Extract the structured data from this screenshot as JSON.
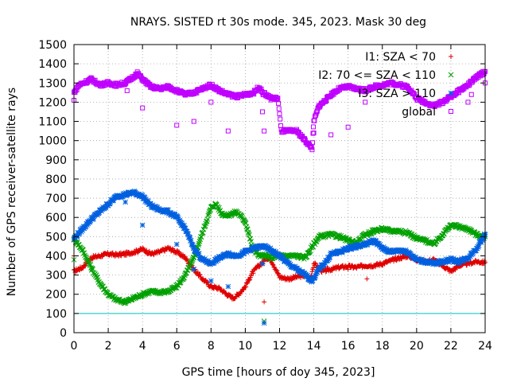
{
  "chart_data": {
    "type": "scatter",
    "title": "NRAYS. SISTED rt 30s mode. 345, 2023. Mask 30 deg",
    "xlabel": "GPS time [hours of doy 345, 2023]",
    "ylabel": "Number of GPS receiver-satellite rays",
    "xlim": [
      0,
      24
    ],
    "ylim": [
      0,
      1500
    ],
    "xticks": [
      0,
      2,
      4,
      6,
      8,
      10,
      12,
      14,
      16,
      18,
      20,
      22,
      24
    ],
    "yticks": [
      0,
      100,
      200,
      300,
      400,
      500,
      600,
      700,
      800,
      900,
      1000,
      1100,
      1200,
      1300,
      1400,
      1500
    ],
    "grid": true,
    "legend_position": "top-right",
    "threshold_line": {
      "y": 100,
      "color": "#00c0c0"
    },
    "series": [
      {
        "name": "I1: SZA < 70",
        "marker": "+",
        "color": "#e00000",
        "points": [
          [
            0,
            320
          ],
          [
            0.5,
            340
          ],
          [
            1,
            390
          ],
          [
            1.5,
            400
          ],
          [
            2,
            410
          ],
          [
            2.5,
            405
          ],
          [
            3,
            410
          ],
          [
            3.5,
            420
          ],
          [
            4,
            435
          ],
          [
            4.5,
            410
          ],
          [
            5,
            420
          ],
          [
            5.5,
            440
          ],
          [
            6,
            420
          ],
          [
            6.5,
            390
          ],
          [
            7,
            330
          ],
          [
            7.5,
            280
          ],
          [
            8,
            240
          ],
          [
            8.5,
            230
          ],
          [
            9,
            195
          ],
          [
            9.3,
            180
          ],
          [
            9.6,
            200
          ],
          [
            10,
            240
          ],
          [
            10.4,
            310
          ],
          [
            10.8,
            350
          ],
          [
            11,
            360
          ],
          [
            11.2,
            390
          ],
          [
            11.5,
            380
          ],
          [
            12,
            290
          ],
          [
            12.5,
            280
          ],
          [
            13,
            290
          ],
          [
            13.5,
            300
          ],
          [
            13.8,
            280
          ],
          [
            14,
            360
          ],
          [
            14.5,
            320
          ],
          [
            15,
            330
          ],
          [
            15.5,
            340
          ],
          [
            16,
            345
          ],
          [
            16.5,
            340
          ],
          [
            17,
            350
          ],
          [
            17.5,
            350
          ],
          [
            18,
            360
          ],
          [
            18.5,
            375
          ],
          [
            19,
            390
          ],
          [
            19.5,
            400
          ],
          [
            20,
            380
          ],
          [
            20.5,
            370
          ],
          [
            21,
            380
          ],
          [
            21.5,
            350
          ],
          [
            22,
            320
          ],
          [
            22.5,
            350
          ],
          [
            23,
            360
          ],
          [
            23.5,
            370
          ],
          [
            24,
            365
          ]
        ],
        "outliers": [
          [
            0,
            400
          ],
          [
            11.1,
            160
          ],
          [
            16,
            330
          ],
          [
            17.1,
            280
          ]
        ]
      },
      {
        "name": "I2: 70 <= SZA < 110",
        "marker": "x",
        "color": "#00a000",
        "points": [
          [
            0,
            490
          ],
          [
            0.5,
            430
          ],
          [
            1,
            340
          ],
          [
            1.5,
            260
          ],
          [
            2,
            200
          ],
          [
            2.5,
            170
          ],
          [
            3,
            160
          ],
          [
            3.5,
            180
          ],
          [
            4,
            200
          ],
          [
            4.5,
            215
          ],
          [
            5,
            210
          ],
          [
            5.5,
            215
          ],
          [
            6,
            240
          ],
          [
            6.5,
            300
          ],
          [
            7,
            390
          ],
          [
            7.5,
            520
          ],
          [
            8,
            650
          ],
          [
            8.3,
            670
          ],
          [
            8.6,
            620
          ],
          [
            9,
            610
          ],
          [
            9.5,
            630
          ],
          [
            10,
            580
          ],
          [
            10.4,
            450
          ],
          [
            10.8,
            400
          ],
          [
            11.2,
            400
          ],
          [
            11.5,
            390
          ],
          [
            12,
            400
          ],
          [
            12.5,
            400
          ],
          [
            13,
            400
          ],
          [
            13.5,
            390
          ],
          [
            14,
            460
          ],
          [
            14.3,
            500
          ],
          [
            15,
            510
          ],
          [
            15.5,
            500
          ],
          [
            16,
            480
          ],
          [
            16.5,
            470
          ],
          [
            17,
            510
          ],
          [
            17.5,
            530
          ],
          [
            18,
            540
          ],
          [
            18.5,
            530
          ],
          [
            19,
            530
          ],
          [
            19.5,
            520
          ],
          [
            20,
            490
          ],
          [
            20.5,
            480
          ],
          [
            21,
            460
          ],
          [
            21.5,
            510
          ],
          [
            22,
            560
          ],
          [
            22.5,
            550
          ],
          [
            23,
            540
          ],
          [
            23.5,
            510
          ],
          [
            24,
            500
          ]
        ],
        "outliers": [
          [
            0,
            380
          ],
          [
            11.1,
            60
          ]
        ]
      },
      {
        "name": "I3: SZA > 110",
        "marker": "*",
        "color": "#0060e0",
        "points": [
          [
            0,
            490
          ],
          [
            0.5,
            540
          ],
          [
            1,
            590
          ],
          [
            1.5,
            630
          ],
          [
            2,
            670
          ],
          [
            2.5,
            710
          ],
          [
            3,
            720
          ],
          [
            3.5,
            730
          ],
          [
            4,
            710
          ],
          [
            4.5,
            660
          ],
          [
            5,
            640
          ],
          [
            5.5,
            630
          ],
          [
            6,
            600
          ],
          [
            6.5,
            540
          ],
          [
            7,
            440
          ],
          [
            7.5,
            380
          ],
          [
            8,
            360
          ],
          [
            8.5,
            390
          ],
          [
            9,
            410
          ],
          [
            9.5,
            400
          ],
          [
            10,
            420
          ],
          [
            10.5,
            440
          ],
          [
            11,
            450
          ],
          [
            11.5,
            430
          ],
          [
            12,
            400
          ],
          [
            12.5,
            360
          ],
          [
            13,
            330
          ],
          [
            13.5,
            300
          ],
          [
            13.9,
            270
          ],
          [
            14.3,
            330
          ],
          [
            14.8,
            380
          ],
          [
            15,
            410
          ],
          [
            15.5,
            420
          ],
          [
            16,
            440
          ],
          [
            16.5,
            450
          ],
          [
            17,
            460
          ],
          [
            17.5,
            480
          ],
          [
            18,
            440
          ],
          [
            18.5,
            420
          ],
          [
            19,
            430
          ],
          [
            19.5,
            420
          ],
          [
            20,
            380
          ],
          [
            20.5,
            370
          ],
          [
            21,
            360
          ],
          [
            21.5,
            370
          ],
          [
            22,
            380
          ],
          [
            22.5,
            370
          ],
          [
            23,
            390
          ],
          [
            23.5,
            440
          ],
          [
            24,
            510
          ]
        ],
        "outliers": [
          [
            3,
            680
          ],
          [
            4,
            560
          ],
          [
            6,
            460
          ],
          [
            7,
            330
          ],
          [
            8,
            270
          ],
          [
            9,
            240
          ],
          [
            11,
            360
          ],
          [
            11.1,
            50
          ]
        ]
      },
      {
        "name": "global",
        "marker": "square",
        "color": "#c000ff",
        "points": [
          [
            0,
            1250
          ],
          [
            0.3,
            1290
          ],
          [
            0.8,
            1310
          ],
          [
            1,
            1320
          ],
          [
            1.5,
            1290
          ],
          [
            2,
            1300
          ],
          [
            2.5,
            1290
          ],
          [
            3,
            1300
          ],
          [
            3.3,
            1320
          ],
          [
            3.7,
            1350
          ],
          [
            4,
            1320
          ],
          [
            4.5,
            1280
          ],
          [
            5,
            1270
          ],
          [
            5.5,
            1280
          ],
          [
            6,
            1260
          ],
          [
            6.5,
            1240
          ],
          [
            7,
            1250
          ],
          [
            7.5,
            1270
          ],
          [
            8,
            1290
          ],
          [
            8.5,
            1260
          ],
          [
            9,
            1240
          ],
          [
            9.5,
            1230
          ],
          [
            10,
            1240
          ],
          [
            10.5,
            1250
          ],
          [
            10.8,
            1280
          ],
          [
            11,
            1250
          ],
          [
            11.5,
            1220
          ],
          [
            11.9,
            1220
          ],
          [
            12.1,
            1050
          ],
          [
            12.5,
            1050
          ],
          [
            13,
            1050
          ],
          [
            13.5,
            1000
          ],
          [
            13.9,
            960
          ],
          [
            14,
            1100
          ],
          [
            14.3,
            1180
          ],
          [
            14.8,
            1220
          ],
          [
            15,
            1240
          ],
          [
            15.5,
            1270
          ],
          [
            16,
            1280
          ],
          [
            16.5,
            1270
          ],
          [
            17,
            1260
          ],
          [
            17.5,
            1280
          ],
          [
            18,
            1290
          ],
          [
            18.5,
            1300
          ],
          [
            19,
            1290
          ],
          [
            19.5,
            1280
          ],
          [
            20,
            1220
          ],
          [
            20.5,
            1200
          ],
          [
            21,
            1180
          ],
          [
            21.5,
            1200
          ],
          [
            22,
            1230
          ],
          [
            22.5,
            1260
          ],
          [
            23,
            1290
          ],
          [
            23.5,
            1330
          ],
          [
            24,
            1360
          ]
        ],
        "outliers": [
          [
            0,
            1210
          ],
          [
            2.2,
            1290
          ],
          [
            3.1,
            1260
          ],
          [
            4,
            1170
          ],
          [
            6,
            1080
          ],
          [
            7,
            1100
          ],
          [
            8,
            1200
          ],
          [
            9,
            1050
          ],
          [
            11,
            1150
          ],
          [
            11.1,
            1050
          ],
          [
            14,
            1040
          ],
          [
            15,
            1030
          ],
          [
            16,
            1070
          ],
          [
            17,
            1200
          ],
          [
            23,
            1200
          ],
          [
            23.2,
            1240
          ],
          [
            24,
            1300
          ]
        ]
      }
    ]
  }
}
